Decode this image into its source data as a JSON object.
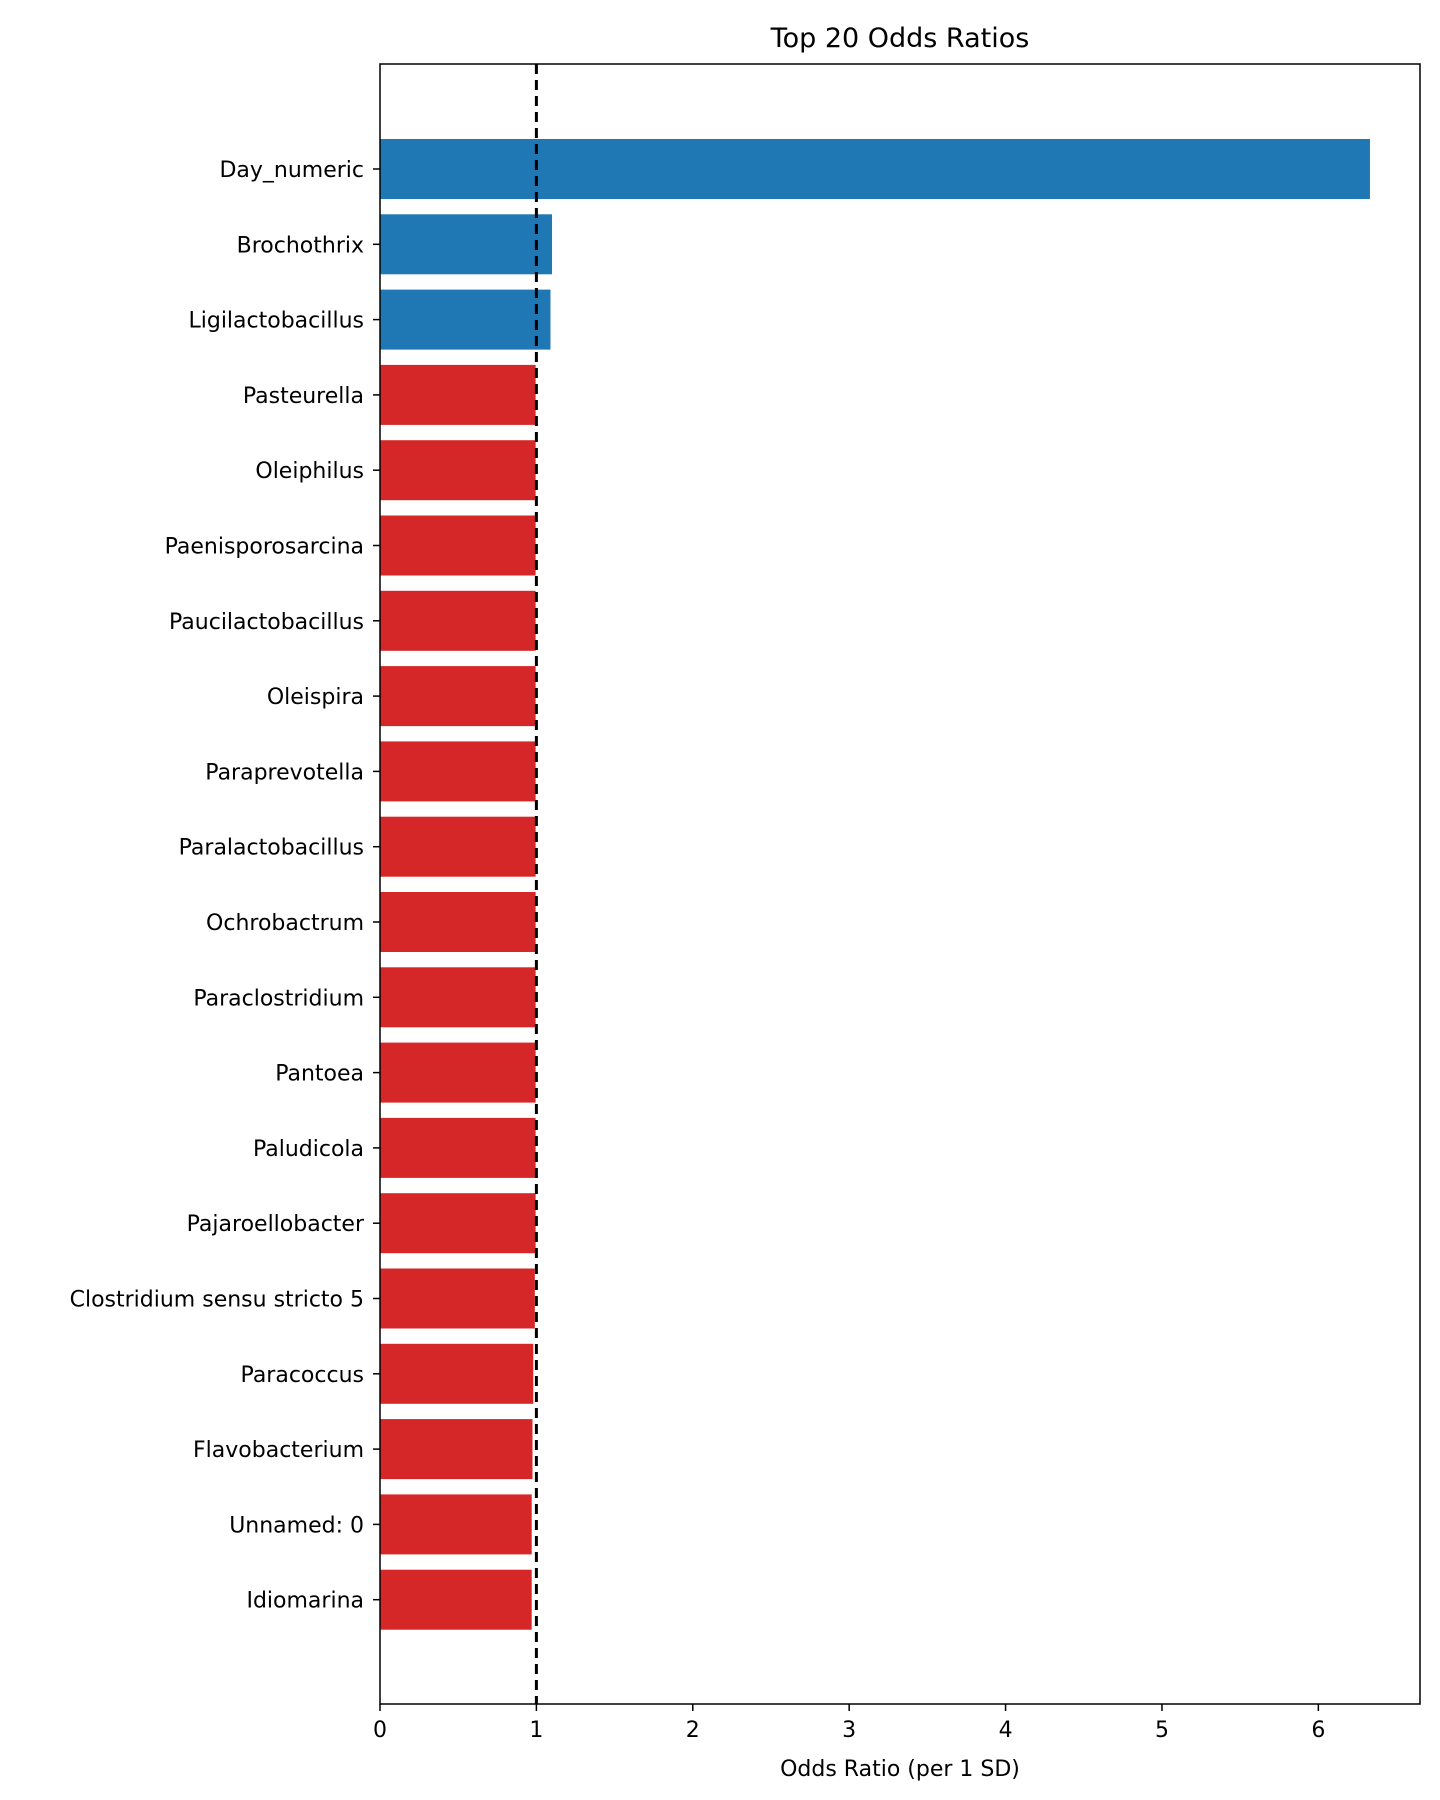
{
  "chart_data": {
    "type": "bar",
    "orientation": "horizontal",
    "title": "Top 20 Odds Ratios",
    "xlabel": "Odds Ratio (per 1 SD)",
    "ylabel": "",
    "xlim": [
      0,
      6.65
    ],
    "xticks": [
      0,
      1,
      2,
      3,
      4,
      5,
      6
    ],
    "reference_line": {
      "x": 1,
      "style": "dashed",
      "color": "#000000"
    },
    "grid": false,
    "legend": "none",
    "colors": {
      "above_one": "#1f77b4",
      "below_one": "#d62728"
    },
    "categories": [
      "Day_numeric",
      "Brochothrix",
      "Ligilactobacillus",
      "Pasteurella",
      "Oleiphilus",
      "Paenisporosarcina",
      "Paucilactobacillus",
      "Oleispira",
      "Paraprevotella",
      "Paralactobacillus",
      "Ochrobactrum",
      "Paraclostridium",
      "Pantoea",
      "Paludicola",
      "Pajaroellobacter",
      "Clostridium sensu stricto 5",
      "Paracoccus",
      "Flavobacterium",
      "Unnamed: 0",
      "Idiomarina"
    ],
    "values": [
      6.33,
      1.1,
      1.09,
      0.995,
      0.995,
      0.995,
      0.995,
      0.995,
      0.995,
      0.995,
      0.995,
      0.995,
      0.995,
      0.995,
      0.995,
      0.99,
      0.98,
      0.975,
      0.97,
      0.97
    ]
  }
}
